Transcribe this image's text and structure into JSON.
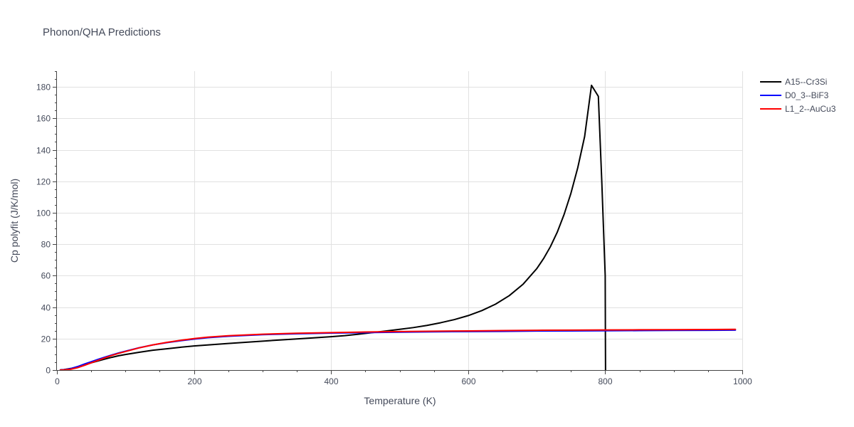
{
  "chart_data": {
    "type": "line",
    "title": "Phonon/QHA Predictions",
    "xlabel": "Temperature (K)",
    "ylabel": "Cp polyfit (J/K/mol)",
    "xlim": [
      0,
      1000
    ],
    "ylim": [
      0,
      190
    ],
    "xticks": [
      0,
      200,
      400,
      600,
      800,
      1000
    ],
    "yticks": [
      0,
      20,
      40,
      60,
      80,
      100,
      120,
      140,
      160,
      180
    ],
    "grid": true,
    "legend_position": "top-right",
    "series": [
      {
        "name": "A15--Cr3Si",
        "color": "#000000",
        "x": [
          5,
          10,
          20,
          30,
          40,
          50,
          60,
          70,
          80,
          90,
          100,
          120,
          140,
          160,
          180,
          200,
          250,
          300,
          350,
          400,
          420,
          440,
          460,
          480,
          500,
          520,
          540,
          560,
          580,
          600,
          620,
          640,
          660,
          680,
          700,
          710,
          720,
          730,
          740,
          750,
          760,
          770,
          780,
          790,
          795,
          800,
          800.3,
          800.5
        ],
        "y": [
          0.1,
          0.3,
          1.0,
          2.0,
          3.3,
          4.6,
          5.8,
          7.0,
          8.1,
          9.1,
          9.9,
          11.3,
          12.6,
          13.5,
          14.5,
          15.3,
          16.9,
          18.4,
          19.8,
          21.2,
          21.9,
          22.8,
          23.8,
          24.8,
          25.9,
          27.0,
          28.4,
          30.1,
          32.1,
          34.6,
          37.8,
          41.9,
          47.3,
          54.5,
          64.4,
          70.8,
          78.4,
          87.6,
          98.9,
          112.4,
          128.7,
          148.5,
          181.0,
          174.0,
          120.0,
          60.0,
          20.0,
          0.0
        ]
      },
      {
        "name": "D0_3--BiF3",
        "color": "#0000ff",
        "x": [
          5,
          10,
          20,
          30,
          40,
          50,
          60,
          70,
          80,
          90,
          100,
          120,
          140,
          160,
          180,
          200,
          220,
          250,
          300,
          350,
          400,
          450,
          500,
          550,
          600,
          650,
          700,
          750,
          800,
          850,
          900,
          950,
          990
        ],
        "y": [
          0.05,
          0.2,
          0.9,
          2.2,
          3.8,
          5.3,
          6.8,
          8.2,
          9.6,
          10.9,
          12.0,
          14.2,
          16.0,
          17.4,
          18.6,
          19.7,
          20.6,
          21.5,
          22.5,
          23.1,
          23.5,
          23.8,
          24.1,
          24.3,
          24.5,
          24.6,
          24.8,
          24.9,
          25.0,
          25.1,
          25.2,
          25.3,
          25.4
        ]
      },
      {
        "name": "L1_2--AuCu3",
        "color": "#ff0000",
        "x": [
          5,
          10,
          20,
          30,
          40,
          50,
          60,
          70,
          80,
          90,
          100,
          120,
          140,
          160,
          180,
          200,
          220,
          250,
          300,
          350,
          400,
          450,
          500,
          550,
          600,
          650,
          700,
          750,
          800,
          850,
          900,
          950,
          990
        ],
        "y": [
          0.0,
          0.1,
          0.5,
          1.5,
          3.0,
          4.6,
          6.2,
          7.8,
          9.3,
          10.6,
          11.8,
          14.1,
          16.0,
          17.6,
          18.9,
          20.0,
          20.9,
          21.8,
          22.8,
          23.4,
          23.8,
          24.2,
          24.5,
          24.7,
          24.9,
          25.1,
          25.3,
          25.4,
          25.5,
          25.6,
          25.7,
          25.8,
          25.9
        ]
      }
    ]
  }
}
